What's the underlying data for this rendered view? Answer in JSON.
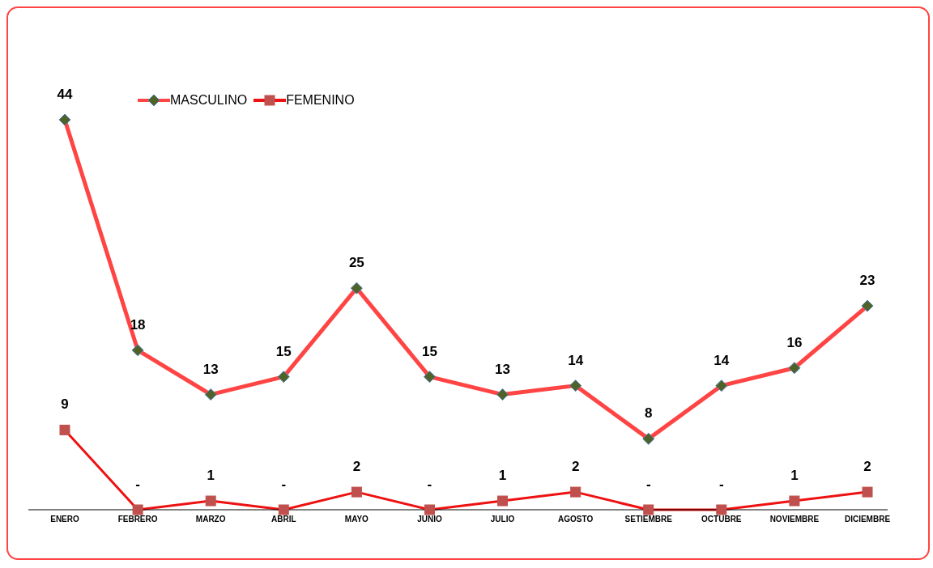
{
  "chart_data": {
    "type": "line",
    "categories": [
      "ENERO",
      "FEBRERO",
      "MARZO",
      "ABRIL",
      "MAYO",
      "JUNIO",
      "JULIO",
      "AGOSTO",
      "SETIEMBRE",
      "OCTUBRE",
      "NOVIEMBRE",
      "DICIEMBRE"
    ],
    "series": [
      {
        "name": "MASCULINO",
        "color": "#ff4444",
        "marker": "diamond",
        "values": [
          44,
          18,
          13,
          15,
          25,
          15,
          13,
          14,
          8,
          14,
          16,
          23
        ],
        "value_labels": [
          "44",
          "18",
          "13",
          "15",
          "25",
          "15",
          "13",
          "14",
          "8",
          "14",
          "16",
          "23"
        ]
      },
      {
        "name": "FEMENINO",
        "color": "#ee1111",
        "marker": "square",
        "values": [
          9,
          0,
          1,
          0,
          2,
          0,
          1,
          2,
          0,
          0,
          1,
          2
        ],
        "value_labels": [
          "9",
          "-",
          "1",
          "-",
          "2",
          "-",
          "1",
          "2",
          "-",
          "-",
          "1",
          "2"
        ]
      }
    ],
    "grid": false,
    "legend": "top left",
    "line_style": "solid"
  }
}
